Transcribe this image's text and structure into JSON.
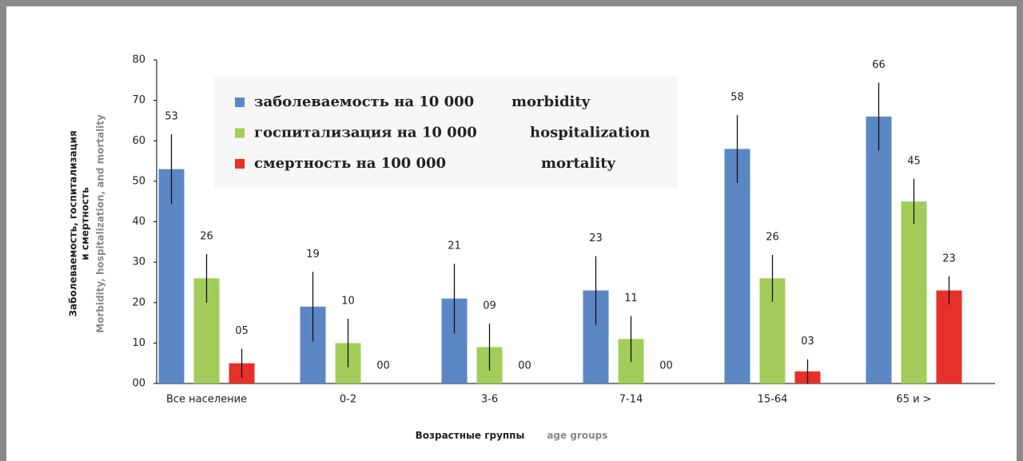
{
  "chart_data": {
    "type": "bar",
    "y_label": [
      "Заболеваемость, госпитализация",
      "и смертность"
    ],
    "y_label_en": "Morbidity, hospitalization, and mortality",
    "x_label": "Возрастные группы",
    "x_label_en": "age groups",
    "categories": [
      "Все население",
      "0-2",
      "3-6",
      "7-14",
      "15-64",
      "65 и >"
    ],
    "series": [
      {
        "name": "заболеваемость на 10 000",
        "legend_en": "morbidity",
        "color": "#5b87c5",
        "values": [
          53,
          19,
          21,
          23,
          58,
          66
        ],
        "errors": [
          8.6,
          8.6,
          8.6,
          8.5,
          8.4,
          8.4
        ]
      },
      {
        "name": "госпитализация на 10 000",
        "legend_en": "hospitalization",
        "color": "#a2cd5a",
        "values": [
          26,
          10,
          9,
          11,
          26,
          45
        ],
        "value_labels": [
          "26",
          "10",
          "09",
          "11",
          "26",
          "45"
        ],
        "errors": [
          6,
          6,
          5.8,
          5.7,
          5.8,
          5.6
        ]
      },
      {
        "name": "смертность на 100 000",
        "legend_en": "mortality",
        "color": "#e8302a",
        "values": [
          5,
          0,
          0,
          0,
          3,
          23
        ],
        "value_labels": [
          "05",
          "00",
          "00",
          "00",
          "03",
          "23"
        ],
        "errors": [
          3.6,
          null,
          null,
          null,
          3,
          3.5
        ]
      }
    ],
    "ylim": [
      0,
      80
    ],
    "yticks": [
      {
        "value": 0,
        "label": "00"
      },
      10,
      20,
      30,
      40,
      50,
      60,
      70,
      80
    ]
  }
}
